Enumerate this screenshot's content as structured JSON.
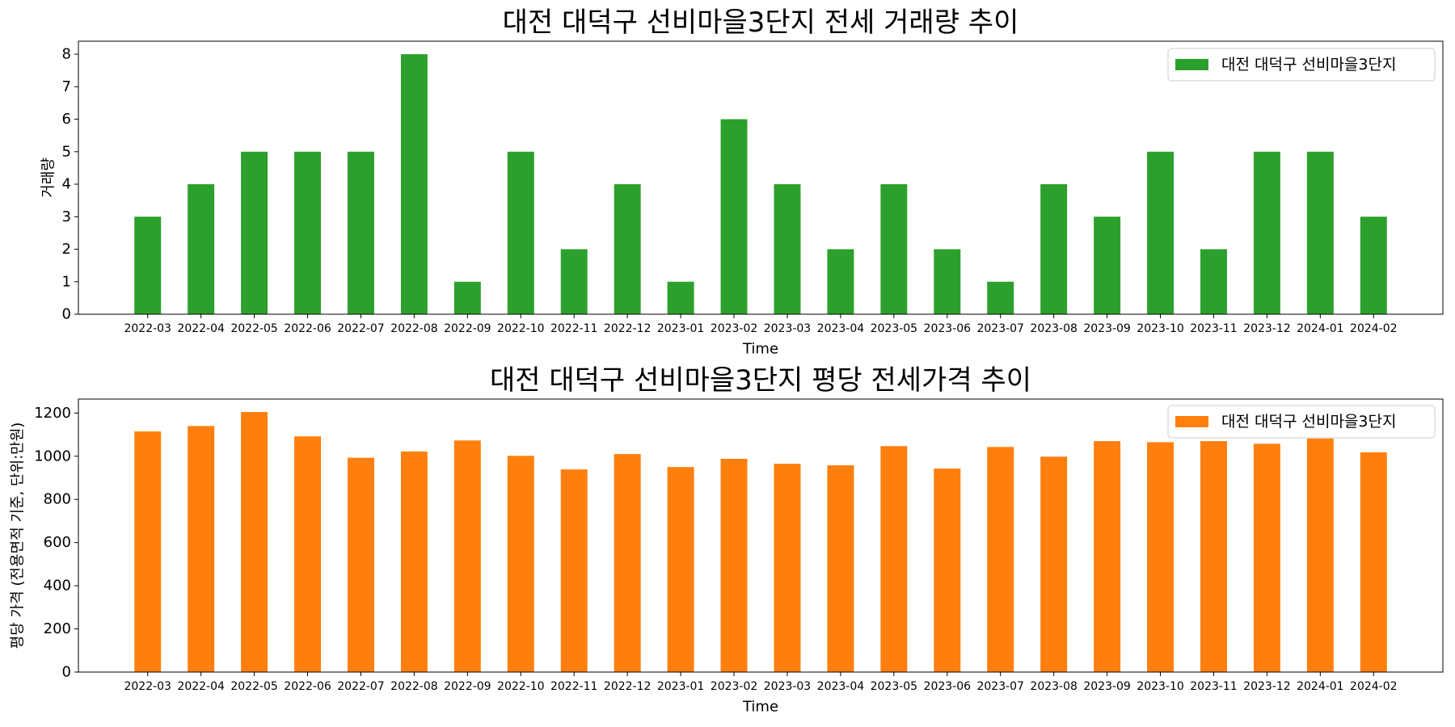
{
  "chart_data": [
    {
      "type": "bar",
      "title": "대전 대덕구 선비마을3단지 전세 거래량 추이",
      "xlabel": "Time",
      "ylabel": "거래량",
      "categories": [
        "2022-03",
        "2022-04",
        "2022-05",
        "2022-06",
        "2022-07",
        "2022-08",
        "2022-09",
        "2022-10",
        "2022-11",
        "2022-12",
        "2023-01",
        "2023-02",
        "2023-03",
        "2023-04",
        "2023-05",
        "2023-06",
        "2023-07",
        "2023-08",
        "2023-09",
        "2023-10",
        "2023-11",
        "2023-12",
        "2024-01",
        "2024-02"
      ],
      "series": [
        {
          "name": "대전 대덕구 선비마을3단지",
          "color": "#2ca02c",
          "values": [
            3,
            4,
            5,
            5,
            5,
            8,
            1,
            5,
            2,
            4,
            1,
            6,
            4,
            2,
            4,
            2,
            1,
            4,
            3,
            5,
            2,
            5,
            5,
            3
          ]
        }
      ],
      "ylim": [
        0,
        8.4
      ],
      "yticks": [
        0,
        1,
        2,
        3,
        4,
        5,
        6,
        7,
        8
      ],
      "legend": "upper right",
      "grid": false
    },
    {
      "type": "bar",
      "title": "대전 대덕구 선비마을3단지 평당 전세가격 추이",
      "xlabel": "Time",
      "ylabel": "평당 가격 (전용면적 기준, 단위:만원)",
      "categories": [
        "2022-03",
        "2022-04",
        "2022-05",
        "2022-06",
        "2022-07",
        "2022-08",
        "2022-09",
        "2022-10",
        "2022-11",
        "2022-12",
        "2023-01",
        "2023-02",
        "2023-03",
        "2023-04",
        "2023-05",
        "2023-06",
        "2023-07",
        "2023-08",
        "2023-09",
        "2023-10",
        "2023-11",
        "2023-12",
        "2024-01",
        "2024-02"
      ],
      "series": [
        {
          "name": "대전 대덕구 선비마을3단지",
          "color": "#ff7f0e",
          "values": [
            1115,
            1140,
            1205,
            1092,
            993,
            1022,
            1073,
            1002,
            939,
            1010,
            950,
            988,
            965,
            958,
            1047,
            943,
            1043,
            998,
            1070,
            1065,
            1070,
            1058,
            1082,
            1018
          ]
        }
      ],
      "ylim": [
        0,
        1265
      ],
      "yticks": [
        0,
        200,
        400,
        600,
        800,
        1000,
        1200
      ],
      "legend": "upper right",
      "grid": false
    }
  ]
}
